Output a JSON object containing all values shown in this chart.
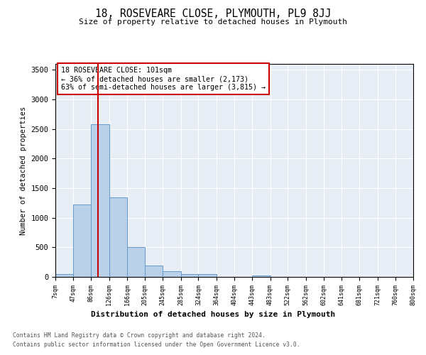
{
  "title": "18, ROSEVEARE CLOSE, PLYMOUTH, PL9 8JJ",
  "subtitle": "Size of property relative to detached houses in Plymouth",
  "xlabel": "Distribution of detached houses by size in Plymouth",
  "ylabel": "Number of detached properties",
  "footer_line1": "Contains HM Land Registry data © Crown copyright and database right 2024.",
  "footer_line2": "Contains public sector information licensed under the Open Government Licence v3.0.",
  "annotation_title": "18 ROSEVEARE CLOSE: 101sqm",
  "annotation_line1": "← 36% of detached houses are smaller (2,173)",
  "annotation_line2": "63% of semi-detached houses are larger (3,815) →",
  "property_size": 101,
  "bar_edges": [
    7,
    47,
    86,
    126,
    166,
    205,
    245,
    285,
    324,
    364,
    404,
    443,
    483,
    522,
    562,
    602,
    641,
    681,
    721,
    760,
    800
  ],
  "bar_heights": [
    50,
    1230,
    2580,
    1340,
    500,
    195,
    100,
    50,
    45,
    0,
    0,
    30,
    0,
    0,
    0,
    0,
    0,
    0,
    0,
    0
  ],
  "bar_color": "#b8d0e8",
  "bar_edge_color": "#6699cc",
  "red_line_color": "#cc0000",
  "bg_color": "#e8eef5",
  "grid_color": "#ffffff",
  "annotation_box_color": "#cc0000",
  "ylim": [
    0,
    3600
  ],
  "yticks": [
    0,
    500,
    1000,
    1500,
    2000,
    2500,
    3000,
    3500
  ]
}
